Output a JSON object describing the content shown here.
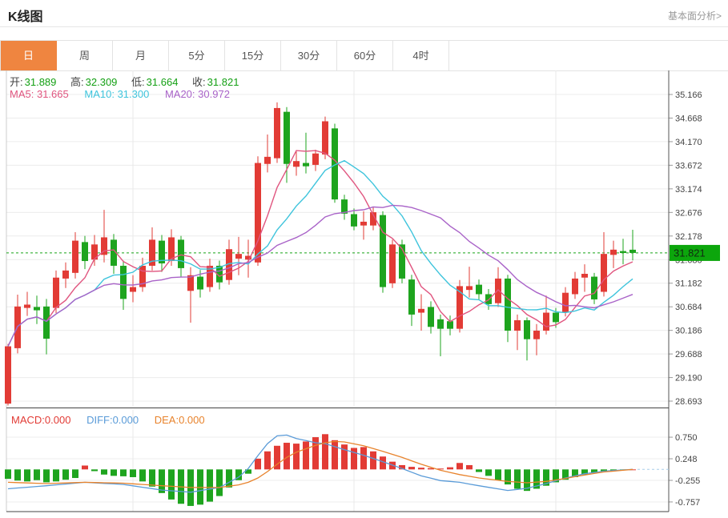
{
  "header": {
    "title": "K线图",
    "link": "基本面分析>"
  },
  "tabs": {
    "items": [
      {
        "label": "日",
        "active": true
      },
      {
        "label": "周",
        "active": false
      },
      {
        "label": "月",
        "active": false
      },
      {
        "label": "5分",
        "active": false
      },
      {
        "label": "15分",
        "active": false
      },
      {
        "label": "30分",
        "active": false
      },
      {
        "label": "60分",
        "active": false
      },
      {
        "label": "4时",
        "active": false
      }
    ]
  },
  "legend": {
    "open_label": "开:",
    "open": "31.889",
    "high_label": "高:",
    "high": "32.309",
    "low_label": "低:",
    "low": "31.664",
    "close_label": "收:",
    "close": "31.821",
    "ma5_label": "MA5:",
    "ma5": "31.665",
    "ma10_label": "MA10:",
    "ma10": "31.300",
    "ma20_label": "MA20:",
    "ma20": "30.972"
  },
  "macd_legend": {
    "macd_label": "MACD:",
    "macd": "0.000",
    "diff_label": "DIFF:",
    "diff": "0.000",
    "dea_label": "DEA:",
    "dea": "0.000"
  },
  "colors": {
    "up": "#e23b35",
    "down": "#1ea41e",
    "tab_active": "#ef8540",
    "ma5": "#e0557f",
    "ma10": "#3ec4dc",
    "ma20": "#a963c8",
    "diff": "#5a9bd8",
    "dea": "#e8832c",
    "price_line": "#17a317",
    "tag_bg": "#0ca60c",
    "tag_text": "#112b11",
    "grid": "#ececec",
    "axis_text": "#444444",
    "border_light": "#cccccc",
    "border_dark": "#555555"
  },
  "chart_data": {
    "type": "candlestick+macd",
    "title": "K线图 daily candlestick with MA5/MA10/MA20 and MACD",
    "price_axis": {
      "ticks": [
        35.166,
        34.668,
        34.17,
        33.672,
        33.174,
        32.676,
        32.178,
        31.68,
        31.182,
        30.684,
        30.186,
        29.688,
        29.19,
        28.693
      ],
      "current_price": 31.821
    },
    "macd_axis": {
      "ticks": [
        0.75,
        0.248,
        -0.255,
        -0.757
      ]
    },
    "ohlc_latest": {
      "open": 31.889,
      "high": 32.309,
      "low": 31.664,
      "close": 31.821
    },
    "ma_latest": {
      "ma5": 31.665,
      "ma10": 31.3,
      "ma20": 30.972
    },
    "macd_latest": {
      "macd": 0.0,
      "diff": 0.0,
      "dea": 0.0
    },
    "ma_periods": [
      5,
      10,
      20
    ],
    "grid_x_indices": [
      13,
      36,
      57
    ],
    "candles": [
      [
        28.64,
        29.9,
        28.6,
        29.85
      ],
      [
        29.81,
        30.94,
        29.7,
        30.69
      ],
      [
        30.66,
        31.0,
        30.49,
        30.73
      ],
      [
        30.68,
        30.92,
        30.32,
        30.61
      ],
      [
        30.69,
        30.85,
        29.68,
        30.01
      ],
      [
        30.66,
        31.45,
        30.55,
        31.3
      ],
      [
        31.28,
        31.62,
        31.08,
        31.45
      ],
      [
        31.4,
        32.26,
        31.28,
        32.08
      ],
      [
        32.05,
        32.18,
        31.48,
        31.65
      ],
      [
        31.68,
        32.2,
        31.55,
        32.0
      ],
      [
        31.78,
        32.73,
        31.62,
        32.15
      ],
      [
        32.1,
        32.22,
        31.38,
        31.55
      ],
      [
        31.55,
        31.66,
        30.62,
        30.85
      ],
      [
        31.0,
        31.35,
        30.78,
        31.1
      ],
      [
        31.1,
        31.72,
        31.0,
        31.55
      ],
      [
        31.55,
        32.36,
        31.45,
        32.1
      ],
      [
        32.08,
        32.2,
        31.42,
        31.6
      ],
      [
        31.65,
        32.32,
        31.55,
        32.15
      ],
      [
        32.1,
        32.18,
        31.32,
        31.5
      ],
      [
        31.02,
        31.52,
        30.35,
        31.35
      ],
      [
        31.32,
        31.46,
        30.88,
        31.05
      ],
      [
        31.1,
        31.7,
        31.0,
        31.55
      ],
      [
        31.55,
        31.66,
        31.05,
        31.2
      ],
      [
        31.25,
        32.1,
        31.15,
        31.9
      ],
      [
        31.7,
        32.16,
        31.35,
        31.8
      ],
      [
        31.68,
        32.1,
        31.3,
        31.76
      ],
      [
        31.62,
        33.86,
        31.55,
        33.72
      ],
      [
        33.7,
        34.32,
        33.52,
        33.85
      ],
      [
        33.82,
        35.0,
        33.72,
        34.88
      ],
      [
        34.8,
        34.9,
        33.3,
        33.7
      ],
      [
        33.64,
        33.96,
        33.45,
        33.76
      ],
      [
        33.72,
        34.36,
        33.5,
        33.65
      ],
      [
        33.68,
        34.0,
        33.55,
        33.92
      ],
      [
        33.9,
        34.7,
        33.8,
        34.6
      ],
      [
        34.45,
        34.55,
        32.88,
        32.95
      ],
      [
        32.95,
        33.05,
        32.52,
        32.65
      ],
      [
        32.64,
        32.76,
        32.3,
        32.38
      ],
      [
        32.4,
        32.7,
        32.1,
        32.48
      ],
      [
        32.4,
        32.8,
        32.3,
        32.68
      ],
      [
        32.62,
        32.7,
        30.98,
        31.1
      ],
      [
        31.18,
        32.1,
        31.08,
        32.0
      ],
      [
        32.0,
        32.1,
        31.18,
        31.28
      ],
      [
        31.26,
        31.36,
        30.28,
        30.52
      ],
      [
        30.56,
        30.95,
        30.18,
        30.64
      ],
      [
        30.68,
        30.8,
        30.12,
        30.26
      ],
      [
        30.42,
        30.52,
        29.64,
        30.22
      ],
      [
        30.38,
        30.5,
        30.08,
        30.22
      ],
      [
        30.22,
        31.25,
        30.14,
        31.12
      ],
      [
        31.04,
        31.53,
        30.88,
        31.12
      ],
      [
        31.15,
        31.26,
        30.84,
        30.95
      ],
      [
        30.95,
        31.06,
        30.62,
        30.74
      ],
      [
        30.76,
        31.52,
        30.68,
        31.28
      ],
      [
        31.28,
        31.36,
        29.94,
        30.18
      ],
      [
        30.18,
        30.52,
        29.77,
        30.4
      ],
      [
        30.4,
        30.46,
        29.55,
        30.0
      ],
      [
        30.0,
        30.32,
        29.66,
        30.18
      ],
      [
        30.18,
        30.92,
        30.1,
        30.56
      ],
      [
        30.56,
        30.66,
        30.24,
        30.36
      ],
      [
        30.56,
        31.1,
        30.48,
        30.98
      ],
      [
        30.95,
        31.42,
        30.85,
        31.28
      ],
      [
        31.3,
        31.58,
        31.0,
        31.38
      ],
      [
        31.32,
        31.4,
        30.74,
        30.84
      ],
      [
        31.0,
        32.26,
        30.9,
        31.8
      ],
      [
        31.78,
        32.08,
        31.5,
        31.89
      ],
      [
        31.86,
        32.12,
        31.58,
        31.82
      ],
      [
        31.889,
        32.309,
        31.664,
        31.821
      ]
    ],
    "macd_hist": [
      -0.22,
      -0.26,
      -0.28,
      -0.25,
      -0.3,
      -0.28,
      -0.24,
      -0.2,
      0.09,
      -0.04,
      -0.12,
      -0.15,
      -0.16,
      -0.18,
      -0.28,
      -0.4,
      -0.55,
      -0.7,
      -0.8,
      -0.85,
      -0.82,
      -0.75,
      -0.62,
      -0.42,
      -0.25,
      -0.1,
      0.25,
      0.42,
      0.55,
      0.62,
      0.6,
      0.65,
      0.75,
      0.82,
      0.68,
      0.58,
      0.5,
      0.52,
      0.42,
      0.3,
      0.18,
      0.1,
      0.06,
      0.04,
      0.03,
      0.02,
      0.05,
      0.15,
      0.1,
      -0.06,
      -0.15,
      -0.25,
      -0.35,
      -0.45,
      -0.5,
      -0.45,
      -0.38,
      -0.3,
      -0.24,
      -0.18,
      -0.12,
      -0.08,
      -0.05,
      -0.03,
      -0.02,
      0.0
    ],
    "diff_points": [
      [
        0,
        -0.45
      ],
      [
        4,
        -0.38
      ],
      [
        8,
        -0.3
      ],
      [
        12,
        -0.35
      ],
      [
        16,
        -0.48
      ],
      [
        19,
        -0.53
      ],
      [
        22,
        -0.42
      ],
      [
        24,
        -0.18
      ],
      [
        25,
        0.02
      ],
      [
        26,
        0.32
      ],
      [
        27,
        0.6
      ],
      [
        28,
        0.78
      ],
      [
        29,
        0.8
      ],
      [
        30,
        0.72
      ],
      [
        32,
        0.62
      ],
      [
        33,
        0.6
      ],
      [
        35,
        0.46
      ],
      [
        37,
        0.33
      ],
      [
        39,
        0.18
      ],
      [
        41,
        0.02
      ],
      [
        43,
        -0.15
      ],
      [
        45,
        -0.26
      ],
      [
        47,
        -0.3
      ],
      [
        49,
        -0.38
      ],
      [
        52,
        -0.49
      ],
      [
        54,
        -0.44
      ],
      [
        56,
        -0.33
      ],
      [
        58,
        -0.2
      ],
      [
        60,
        -0.1
      ],
      [
        62,
        -0.04
      ],
      [
        65,
        0.0
      ]
    ],
    "dea_points": [
      [
        0,
        -0.3
      ],
      [
        4,
        -0.33
      ],
      [
        8,
        -0.3
      ],
      [
        12,
        -0.32
      ],
      [
        16,
        -0.38
      ],
      [
        19,
        -0.42
      ],
      [
        22,
        -0.42
      ],
      [
        24,
        -0.36
      ],
      [
        25,
        -0.3
      ],
      [
        26,
        -0.2
      ],
      [
        27,
        -0.05
      ],
      [
        28,
        0.12
      ],
      [
        29,
        0.28
      ],
      [
        30,
        0.4
      ],
      [
        31,
        0.48
      ],
      [
        32,
        0.56
      ],
      [
        33,
        0.62
      ],
      [
        34,
        0.65
      ],
      [
        35,
        0.64
      ],
      [
        37,
        0.55
      ],
      [
        39,
        0.42
      ],
      [
        41,
        0.28
      ],
      [
        43,
        0.12
      ],
      [
        45,
        -0.02
      ],
      [
        47,
        -0.12
      ],
      [
        49,
        -0.2
      ],
      [
        52,
        -0.28
      ],
      [
        54,
        -0.31
      ],
      [
        56,
        -0.28
      ],
      [
        58,
        -0.21
      ],
      [
        60,
        -0.13
      ],
      [
        62,
        -0.06
      ],
      [
        65,
        0.0
      ]
    ]
  }
}
